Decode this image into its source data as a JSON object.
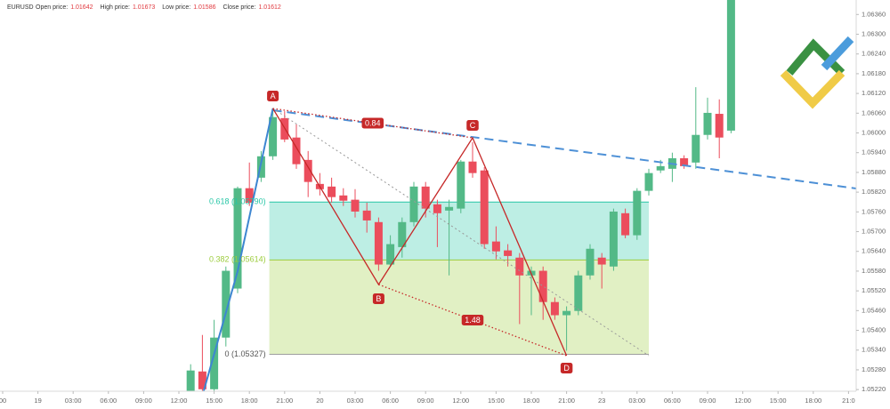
{
  "header": {
    "symbol": "EURUSD",
    "stats": [
      {
        "label": "Open price:",
        "value": "1.01642"
      },
      {
        "label": "High price:",
        "value": "1.01673"
      },
      {
        "label": "Low price:",
        "value": "1.01586"
      },
      {
        "label": "Close price:",
        "value": "1.01612"
      }
    ]
  },
  "chart_data": {
    "type": "candlestick",
    "categories": [
      "00",
      null,
      null,
      "19",
      null,
      null,
      "03:00",
      null,
      null,
      "06:00",
      null,
      null,
      "09:00",
      null,
      null,
      "12:00",
      null,
      null,
      "15:00",
      null,
      null,
      "18:00",
      null,
      null,
      "21:00",
      null,
      null,
      "20",
      null,
      null,
      "03:00",
      null,
      null,
      "06:00",
      null,
      null,
      "09:00",
      null,
      null,
      "12:00",
      null,
      null,
      "15:00",
      null,
      null,
      "18:00",
      null,
      null,
      "21:00",
      null,
      null,
      "23",
      null,
      null,
      "03:00",
      null,
      null,
      "06:00",
      null,
      null,
      "09:00",
      null,
      null,
      "12:00",
      null,
      null,
      "15:00",
      null,
      null,
      "18:00",
      null,
      null,
      "21:0"
    ],
    "open": [
      null,
      null,
      null,
      null,
      null,
      null,
      null,
      null,
      null,
      null,
      null,
      null,
      null,
      null,
      null,
      null,
      1.05216,
      1.05275,
      1.05221,
      1.05378,
      1.05527,
      1.05832,
      1.05864,
      1.05929,
      1.06045,
      1.05986,
      1.05918,
      1.05845,
      1.05837,
      1.0581,
      1.05797,
      1.05764,
      1.05729,
      1.056,
      1.05653,
      1.05729,
      1.05837,
      1.05783,
      1.05764,
      1.0577,
      1.05913,
      1.05886,
      1.0567,
      1.05643,
      1.05621,
      1.05567,
      1.05581,
      1.05486,
      1.05446,
      1.05459,
      1.05567,
      1.05621,
      1.05594,
      1.05756,
      1.05689,
      1.05824,
      1.05886,
      1.05891,
      1.05923,
      1.0591,
      1.05994,
      1.06058,
      1.06007,
      null,
      null,
      null,
      null,
      null,
      null,
      null,
      null,
      null,
      null
    ],
    "high": [
      null,
      null,
      null,
      null,
      null,
      null,
      null,
      null,
      null,
      null,
      null,
      null,
      null,
      null,
      null,
      null,
      1.05297,
      1.05386,
      1.05432,
      1.05594,
      1.05837,
      1.0591,
      1.05945,
      1.06075,
      1.06066,
      1.06026,
      1.05945,
      1.05878,
      1.05864,
      1.05832,
      1.05829,
      1.05788,
      1.05743,
      1.05689,
      1.05743,
      1.05851,
      1.05851,
      1.05797,
      1.05797,
      1.05918,
      1.05972,
      1.05896,
      1.05716,
      1.05662,
      1.05635,
      1.05594,
      1.05594,
      1.055,
      1.05473,
      1.05581,
      1.05662,
      1.05635,
      1.0577,
      1.0577,
      1.05832,
      1.05891,
      1.05918,
      1.0594,
      1.05932,
      1.06139,
      1.06107,
      1.06102,
      1.0644,
      null,
      null,
      null,
      null,
      null,
      null,
      null,
      null,
      null,
      null
    ],
    "low": [
      null,
      null,
      null,
      null,
      null,
      null,
      null,
      null,
      null,
      null,
      null,
      null,
      null,
      null,
      null,
      null,
      1.05202,
      1.05202,
      1.05202,
      1.05351,
      1.05513,
      1.05778,
      1.05851,
      1.05918,
      1.05972,
      1.05891,
      1.05805,
      1.0581,
      1.05788,
      1.05778,
      1.05743,
      1.05697,
      1.05581,
      1.05594,
      1.05621,
      1.05716,
      1.05743,
      1.05653,
      1.05567,
      1.05756,
      1.05864,
      1.05648,
      1.05616,
      1.05594,
      1.05419,
      1.05446,
      1.05432,
      1.05432,
      1.05338,
      1.05446,
      1.05554,
      1.05527,
      1.05581,
      1.0568,
      1.05675,
      1.0581,
      1.05878,
      1.05851,
      1.05891,
      1.05891,
      1.0598,
      1.05923,
      1.05999,
      null,
      null,
      null,
      null,
      null,
      null,
      null,
      null,
      null,
      null
    ],
    "close": [
      null,
      null,
      null,
      null,
      null,
      null,
      null,
      null,
      null,
      null,
      null,
      null,
      null,
      null,
      null,
      null,
      1.05278,
      1.05221,
      1.05378,
      1.05581,
      1.05832,
      1.05788,
      1.05929,
      1.06048,
      1.0598,
      1.05905,
      1.05851,
      1.05829,
      1.05805,
      1.05794,
      1.05761,
      1.05734,
      1.056,
      1.05662,
      1.05729,
      1.05837,
      1.0577,
      1.05756,
      1.05775,
      1.05913,
      1.05878,
      1.05662,
      1.0564,
      1.05626,
      1.05567,
      1.05581,
      1.05486,
      1.05446,
      1.05459,
      1.05567,
      1.05648,
      1.056,
      1.05761,
      1.05689,
      1.05824,
      1.05878,
      1.05899,
      1.05923,
      1.05899,
      1.05994,
      1.06061,
      1.05986,
      1.0644,
      null,
      null,
      null,
      null,
      null,
      null,
      null,
      null,
      null,
      null
    ],
    "up_color": "#53b987",
    "down_color": "#eb4d5c",
    "ylim": [
      1.05215,
      1.06404
    ],
    "yticks": [
      {
        "value": 1.0522,
        "label": "1.05220"
      },
      {
        "value": 1.0528,
        "label": "1.05280"
      },
      {
        "value": 1.0534,
        "label": "1.05340"
      },
      {
        "value": 1.054,
        "label": "1.05400"
      },
      {
        "value": 1.0546,
        "label": "1.05460"
      },
      {
        "value": 1.0552,
        "label": "1.05520"
      },
      {
        "value": 1.0558,
        "label": "1.05580"
      },
      {
        "value": 1.0564,
        "label": "1.05640"
      },
      {
        "value": 1.057,
        "label": "1.05700"
      },
      {
        "value": 1.0576,
        "label": "1.05760"
      },
      {
        "value": 1.0582,
        "label": "1.05820"
      },
      {
        "value": 1.0588,
        "label": "1.05880"
      },
      {
        "value": 1.0594,
        "label": "1.05940"
      },
      {
        "value": 1.06,
        "label": "1.06000"
      },
      {
        "value": 1.0606,
        "label": "1.06060"
      },
      {
        "value": 1.0612,
        "label": "1.06120"
      },
      {
        "value": 1.0618,
        "label": "1.06180"
      },
      {
        "value": 1.0624,
        "label": "1.06240"
      },
      {
        "value": 1.063,
        "label": "1.06300"
      },
      {
        "value": 1.0636,
        "label": "1.06360"
      }
    ],
    "fib": {
      "levels": [
        {
          "price": 1.0579,
          "label": "0.618 (1.05790)",
          "color": "#26c6a6"
        },
        {
          "price": 1.05614,
          "label": "0.382 (1.05614)",
          "color": "#9ccc3c"
        },
        {
          "price": 1.05327,
          "label": "0 (1.05327)",
          "color": "#9e9e9e"
        }
      ]
    },
    "pattern": {
      "points": [
        "A",
        "B",
        "C",
        "D"
      ],
      "ratios": [
        0.84,
        1.48
      ],
      "color": "#c62828"
    }
  }
}
